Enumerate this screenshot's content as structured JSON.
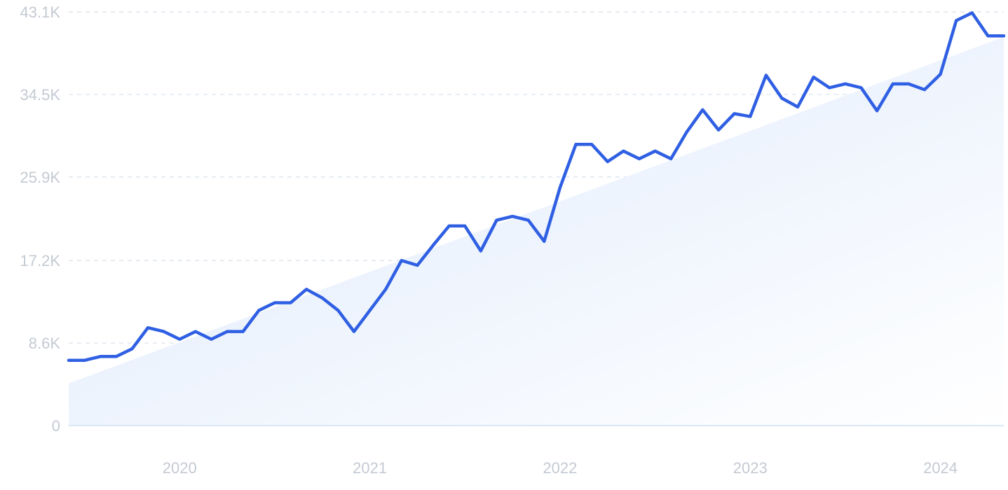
{
  "chart_data": {
    "type": "line",
    "title": "",
    "xlabel": "",
    "ylabel": "",
    "ylim": [
      0,
      43100
    ],
    "grid": true,
    "colors": {
      "line": "#2f5fe3",
      "area_start": "#dde9fb",
      "area_end": "#ffffff",
      "grid": "#d6e0ec",
      "tick": "#c4cad3"
    },
    "yticks": [
      {
        "value": 0,
        "label": "0"
      },
      {
        "value": 8600,
        "label": "8.6K"
      },
      {
        "value": 17200,
        "label": "17.2K"
      },
      {
        "value": 25900,
        "label": "25.9K"
      },
      {
        "value": 34500,
        "label": "34.5K"
      },
      {
        "value": 43100,
        "label": "43.1K"
      }
    ],
    "xticks": [
      {
        "value": "2020",
        "label": "2020"
      },
      {
        "value": "2021",
        "label": "2021"
      },
      {
        "value": "2022",
        "label": "2022"
      },
      {
        "value": "2023",
        "label": "2023"
      },
      {
        "value": "2024",
        "label": "2024"
      }
    ],
    "x_range": [
      "2019-06",
      "2024-05"
    ],
    "trend": {
      "start": 4400,
      "end": 40500
    },
    "series": [
      {
        "x": [
          "2019-06",
          "2019-07",
          "2019-08",
          "2019-09",
          "2019-10",
          "2019-11",
          "2019-12",
          "2020-01",
          "2020-02",
          "2020-03",
          "2020-04",
          "2020-05",
          "2020-06",
          "2020-07",
          "2020-08",
          "2020-09",
          "2020-10",
          "2020-11",
          "2020-12",
          "2021-01",
          "2021-02",
          "2021-03",
          "2021-04",
          "2021-05",
          "2021-06",
          "2021-07",
          "2021-08",
          "2021-09",
          "2021-10",
          "2021-11",
          "2021-12",
          "2022-01",
          "2022-02",
          "2022-03",
          "2022-04",
          "2022-05",
          "2022-06",
          "2022-07",
          "2022-08",
          "2022-09",
          "2022-10",
          "2022-11",
          "2022-12",
          "2023-01",
          "2023-02",
          "2023-03",
          "2023-04",
          "2023-05",
          "2023-06",
          "2023-07",
          "2023-08",
          "2023-09",
          "2023-10",
          "2023-11",
          "2023-12",
          "2024-01",
          "2024-02",
          "2024-03",
          "2024-04",
          "2024-05"
        ],
        "values": [
          6800,
          6800,
          7200,
          7200,
          8000,
          10200,
          9800,
          9000,
          9800,
          9000,
          9800,
          9800,
          12000,
          12800,
          12800,
          14200,
          13300,
          12000,
          9800,
          12000,
          14200,
          17200,
          16700,
          18800,
          20800,
          20800,
          18200,
          21400,
          21800,
          21400,
          19200,
          24800,
          29300,
          29300,
          27500,
          28600,
          27800,
          28600,
          27800,
          30600,
          32900,
          30800,
          32500,
          32200,
          36500,
          34100,
          33200,
          36300,
          35200,
          35600,
          35200,
          32800,
          35600,
          35600,
          35000,
          36600,
          42200,
          43000,
          40600,
          40600
        ]
      }
    ]
  }
}
